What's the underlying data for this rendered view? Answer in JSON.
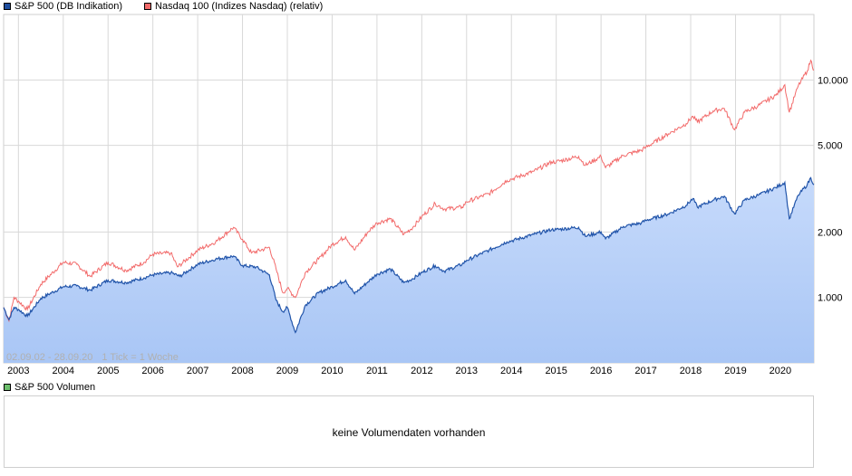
{
  "legend": {
    "series1": "S&P 500 (DB Indikation)",
    "series2": "Nasdaq 100 (Indizes Nasdaq) (relativ)",
    "volume": "S&P 500 Volumen"
  },
  "colors": {
    "series1_line": "#2255aa",
    "series1_fill_top": "#c6dafb",
    "series1_fill_bottom": "#a9c6f5",
    "series2_line": "#f26a6a",
    "series1_swatch": "#1f4f9f",
    "series2_swatch": "#f26a6a",
    "volume_swatch": "#6dbf6d",
    "grid": "#d8d8d8"
  },
  "range_info": {
    "range": "02.09.02 - 28.09.20",
    "tick": "1 Tick = 1 Woche"
  },
  "volume_panel": {
    "message": "keine Volumendaten vorhanden"
  },
  "chart_data": {
    "type": "line",
    "y_scale": "log",
    "ylim": [
      500,
      20000
    ],
    "xlim": [
      2002.67,
      2020.75
    ],
    "y_ticks": [
      {
        "value": 1000,
        "label": "1.000"
      },
      {
        "value": 2000,
        "label": "2.000"
      },
      {
        "value": 5000,
        "label": "5.000"
      },
      {
        "value": 10000,
        "label": "10.000"
      }
    ],
    "x_ticks": [
      {
        "value": 2003,
        "label": "2003"
      },
      {
        "value": 2004,
        "label": "2004"
      },
      {
        "value": 2005,
        "label": "2005"
      },
      {
        "value": 2006,
        "label": "2006"
      },
      {
        "value": 2007,
        "label": "2007"
      },
      {
        "value": 2008,
        "label": "2008"
      },
      {
        "value": 2009,
        "label": "2009"
      },
      {
        "value": 2010,
        "label": "2010"
      },
      {
        "value": 2011,
        "label": "2011"
      },
      {
        "value": 2012,
        "label": "2012"
      },
      {
        "value": 2013,
        "label": "2013"
      },
      {
        "value": 2014,
        "label": "2014"
      },
      {
        "value": 2015,
        "label": "2015"
      },
      {
        "value": 2016,
        "label": "2016"
      },
      {
        "value": 2017,
        "label": "2017"
      },
      {
        "value": 2018,
        "label": "2018"
      },
      {
        "value": 2019,
        "label": "2019"
      },
      {
        "value": 2020,
        "label": "2020"
      }
    ],
    "grid": true,
    "series": [
      {
        "name": "S&P 500 (DB Indikation)",
        "style": "area",
        "points": [
          [
            2002.67,
            900
          ],
          [
            2002.79,
            790
          ],
          [
            2002.9,
            900
          ],
          [
            2003.0,
            880
          ],
          [
            2003.2,
            820
          ],
          [
            2003.5,
            990
          ],
          [
            2004.0,
            1120
          ],
          [
            2004.3,
            1130
          ],
          [
            2004.6,
            1080
          ],
          [
            2005.0,
            1200
          ],
          [
            2005.4,
            1170
          ],
          [
            2005.8,
            1230
          ],
          [
            2006.0,
            1270
          ],
          [
            2006.4,
            1300
          ],
          [
            2006.6,
            1250
          ],
          [
            2007.0,
            1420
          ],
          [
            2007.4,
            1500
          ],
          [
            2007.8,
            1550
          ],
          [
            2008.0,
            1400
          ],
          [
            2008.3,
            1380
          ],
          [
            2008.6,
            1270
          ],
          [
            2008.75,
            970
          ],
          [
            2008.9,
            860
          ],
          [
            2009.0,
            900
          ],
          [
            2009.18,
            690
          ],
          [
            2009.4,
            920
          ],
          [
            2009.7,
            1050
          ],
          [
            2010.0,
            1120
          ],
          [
            2010.3,
            1200
          ],
          [
            2010.5,
            1040
          ],
          [
            2010.8,
            1180
          ],
          [
            2011.0,
            1280
          ],
          [
            2011.3,
            1350
          ],
          [
            2011.6,
            1170
          ],
          [
            2011.8,
            1220
          ],
          [
            2012.0,
            1300
          ],
          [
            2012.3,
            1400
          ],
          [
            2012.5,
            1320
          ],
          [
            2012.9,
            1420
          ],
          [
            2013.0,
            1480
          ],
          [
            2013.5,
            1650
          ],
          [
            2013.9,
            1800
          ],
          [
            2014.0,
            1820
          ],
          [
            2014.5,
            1950
          ],
          [
            2014.9,
            2050
          ],
          [
            2015.0,
            2050
          ],
          [
            2015.5,
            2100
          ],
          [
            2015.65,
            1910
          ],
          [
            2016.0,
            2000
          ],
          [
            2016.1,
            1860
          ],
          [
            2016.5,
            2120
          ],
          [
            2016.9,
            2200
          ],
          [
            2017.0,
            2260
          ],
          [
            2017.5,
            2420
          ],
          [
            2017.9,
            2650
          ],
          [
            2018.05,
            2850
          ],
          [
            2018.15,
            2600
          ],
          [
            2018.5,
            2800
          ],
          [
            2018.75,
            2920
          ],
          [
            2018.98,
            2420
          ],
          [
            2019.2,
            2800
          ],
          [
            2019.5,
            2950
          ],
          [
            2019.9,
            3200
          ],
          [
            2020.1,
            3380
          ],
          [
            2020.2,
            2300
          ],
          [
            2020.4,
            2950
          ],
          [
            2020.6,
            3300
          ],
          [
            2020.68,
            3550
          ],
          [
            2020.75,
            3300
          ]
        ]
      },
      {
        "name": "Nasdaq 100 (Indizes Nasdaq) (relativ)",
        "style": "line",
        "points": [
          [
            2002.67,
            900
          ],
          [
            2002.79,
            780
          ],
          [
            2002.9,
            1000
          ],
          [
            2003.0,
            960
          ],
          [
            2003.2,
            880
          ],
          [
            2003.5,
            1150
          ],
          [
            2004.0,
            1450
          ],
          [
            2004.3,
            1420
          ],
          [
            2004.6,
            1250
          ],
          [
            2005.0,
            1450
          ],
          [
            2005.4,
            1330
          ],
          [
            2005.8,
            1450
          ],
          [
            2006.0,
            1580
          ],
          [
            2006.4,
            1600
          ],
          [
            2006.55,
            1380
          ],
          [
            2007.0,
            1650
          ],
          [
            2007.4,
            1800
          ],
          [
            2007.8,
            2100
          ],
          [
            2008.0,
            1850
          ],
          [
            2008.2,
            1600
          ],
          [
            2008.6,
            1700
          ],
          [
            2008.75,
            1350
          ],
          [
            2008.9,
            1050
          ],
          [
            2009.0,
            1100
          ],
          [
            2009.18,
            1000
          ],
          [
            2009.4,
            1300
          ],
          [
            2009.7,
            1500
          ],
          [
            2010.0,
            1750
          ],
          [
            2010.3,
            1900
          ],
          [
            2010.5,
            1650
          ],
          [
            2010.8,
            2000
          ],
          [
            2011.0,
            2200
          ],
          [
            2011.3,
            2300
          ],
          [
            2011.6,
            1950
          ],
          [
            2011.8,
            2100
          ],
          [
            2012.0,
            2350
          ],
          [
            2012.3,
            2700
          ],
          [
            2012.5,
            2550
          ],
          [
            2012.9,
            2600
          ],
          [
            2013.0,
            2750
          ],
          [
            2013.5,
            3000
          ],
          [
            2013.9,
            3450
          ],
          [
            2014.0,
            3500
          ],
          [
            2014.5,
            3800
          ],
          [
            2014.9,
            4200
          ],
          [
            2015.0,
            4200
          ],
          [
            2015.5,
            4450
          ],
          [
            2015.65,
            4050
          ],
          [
            2016.0,
            4450
          ],
          [
            2016.1,
            3950
          ],
          [
            2016.5,
            4500
          ],
          [
            2016.9,
            4750
          ],
          [
            2017.0,
            4900
          ],
          [
            2017.5,
            5650
          ],
          [
            2017.9,
            6300
          ],
          [
            2018.05,
            6800
          ],
          [
            2018.15,
            6400
          ],
          [
            2018.5,
            7200
          ],
          [
            2018.75,
            7400
          ],
          [
            2018.98,
            5900
          ],
          [
            2019.2,
            7100
          ],
          [
            2019.5,
            7600
          ],
          [
            2019.9,
            8500
          ],
          [
            2020.1,
            9500
          ],
          [
            2020.2,
            7100
          ],
          [
            2020.4,
            9400
          ],
          [
            2020.6,
            11000
          ],
          [
            2020.68,
            12300
          ],
          [
            2020.75,
            11100
          ]
        ]
      }
    ]
  }
}
